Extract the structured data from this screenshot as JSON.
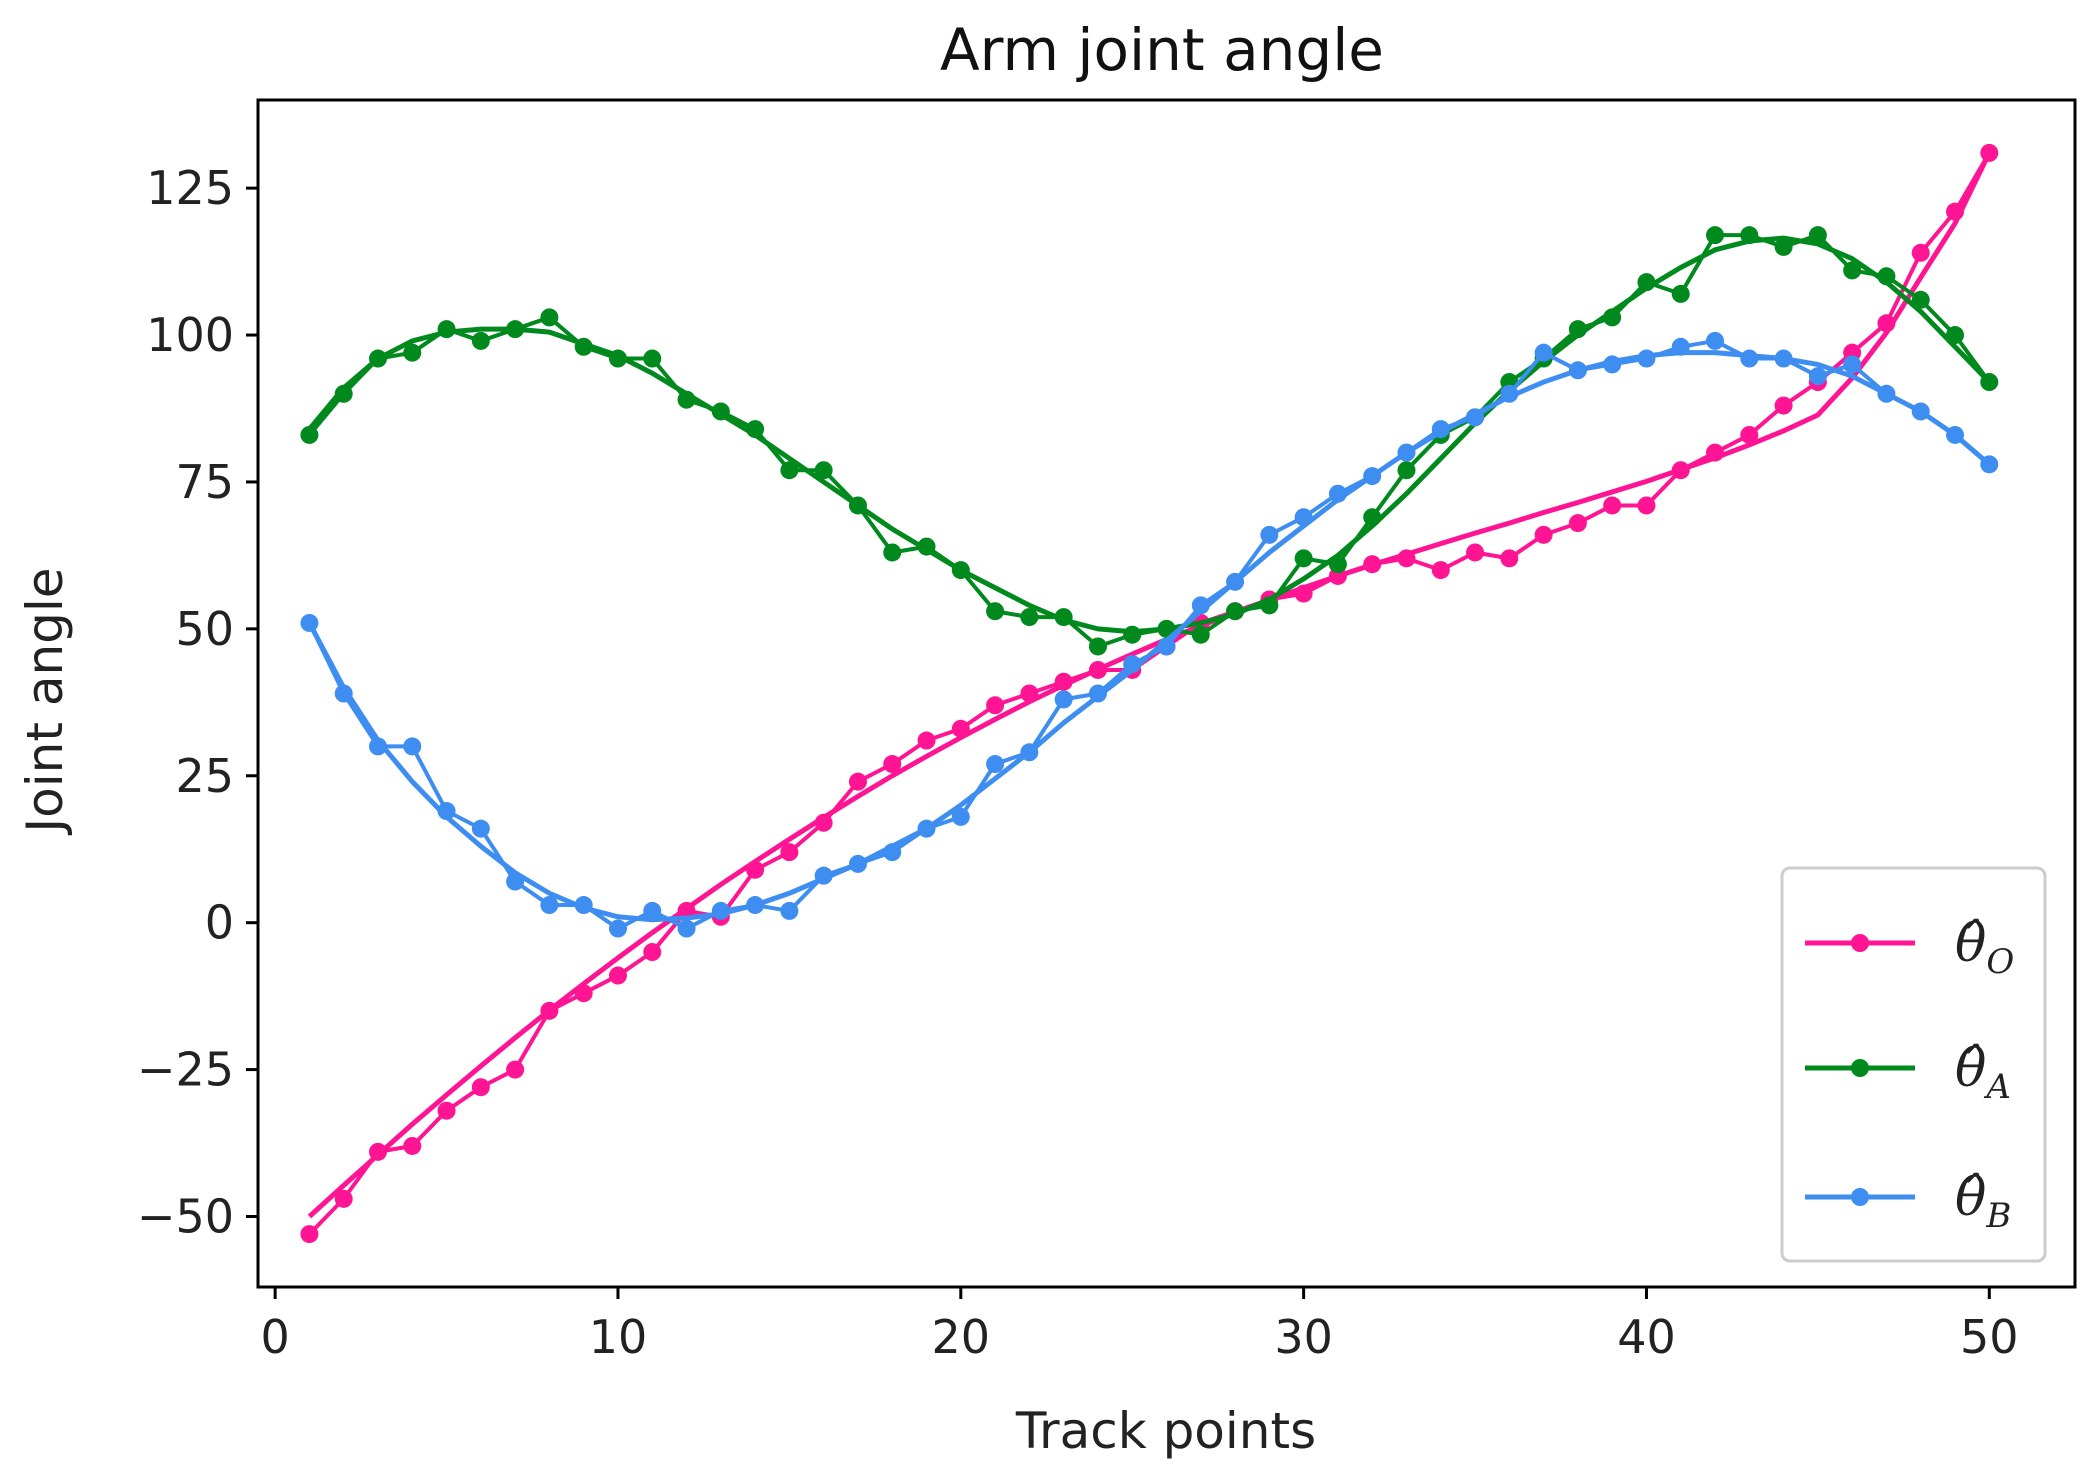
{
  "chart_data": {
    "type": "line",
    "title": "Arm joint angle",
    "xlabel": "Track points",
    "ylabel": "Joint angle",
    "xlim": [
      -0.5,
      52.5
    ],
    "ylim": [
      -62,
      140
    ],
    "xticks": [
      0,
      10,
      20,
      30,
      40,
      50
    ],
    "yticks": [
      -50,
      -25,
      0,
      25,
      50,
      75,
      100,
      125
    ],
    "ytick_labels": [
      "−50",
      "−25",
      "0",
      "25",
      "50",
      "75",
      "100",
      "125"
    ],
    "grid": false,
    "legend_position": "lower-right",
    "x": [
      1,
      2,
      3,
      4,
      5,
      6,
      7,
      8,
      9,
      10,
      11,
      12,
      13,
      14,
      15,
      16,
      17,
      18,
      19,
      20,
      21,
      22,
      23,
      24,
      25,
      26,
      27,
      28,
      29,
      30,
      31,
      32,
      33,
      34,
      35,
      36,
      37,
      38,
      39,
      40,
      41,
      42,
      43,
      44,
      45,
      46,
      47,
      48,
      49,
      50
    ],
    "series": [
      {
        "name": "θ̂",
        "subscript": "O",
        "color": "#ff1493",
        "values": [
          -53,
          -47,
          -39,
          -38,
          -32,
          -28,
          -25,
          -15,
          -12,
          -9,
          -5,
          2,
          1,
          9,
          12,
          17,
          24,
          27,
          31,
          33,
          37,
          39,
          41,
          43,
          43,
          47,
          51,
          53,
          55,
          56,
          59,
          61,
          62,
          60,
          63,
          62,
          66,
          68,
          71,
          71,
          77,
          80,
          83,
          88,
          92,
          97,
          102,
          114,
          121,
          131
        ],
        "fit": [
          -50,
          -44.7,
          -39.5,
          -34.3,
          -29.3,
          -24.4,
          -19.6,
          -14.9,
          -10.4,
          -6.0,
          -1.7,
          2.4,
          6.5,
          10.4,
          14.2,
          17.9,
          21.5,
          25.0,
          28.3,
          31.5,
          34.6,
          37.6,
          40.4,
          43.1,
          45.7,
          48.2,
          50.5,
          52.8,
          54.9,
          57.0,
          59.0,
          60.9,
          62.7,
          64.5,
          66.3,
          68.0,
          69.8,
          71.5,
          73.3,
          75.1,
          77.1,
          79.1,
          81.3,
          83.7,
          86.4,
          92.7,
          100.4,
          109.8,
          119.0,
          131
        ]
      },
      {
        "name": "θ̂",
        "subscript": "A",
        "color": "#008a1e",
        "values": [
          83,
          90,
          96,
          97,
          101,
          99,
          101,
          103,
          98,
          96,
          96,
          89,
          87,
          84,
          77,
          77,
          71,
          63,
          64,
          60,
          53,
          52,
          52,
          47,
          49,
          50,
          49,
          53,
          54,
          62,
          61,
          69,
          77,
          83,
          86,
          92,
          96,
          101,
          103,
          109,
          107,
          117,
          117,
          115,
          117,
          111,
          110,
          106,
          100,
          92
        ],
        "fit": [
          84,
          91,
          96,
          99,
          100.5,
          101,
          101,
          100.5,
          98.5,
          96.5,
          93.5,
          90.0,
          86.5,
          83.0,
          79.0,
          75.0,
          71.0,
          67.0,
          63.5,
          60.0,
          57.0,
          54.0,
          51.5,
          50.0,
          49.5,
          50.0,
          51.0,
          52.5,
          55.0,
          58.5,
          62.5,
          67.5,
          73.0,
          79.0,
          85.0,
          90.5,
          95.5,
          100,
          104,
          108,
          111.5,
          114.5,
          116,
          116.5,
          115.5,
          113,
          109,
          104,
          98,
          92
        ]
      },
      {
        "name": "θ̂",
        "subscript": "B",
        "color": "#3d8ef0",
        "values": [
          51,
          39,
          30,
          30,
          19,
          16,
          7,
          3,
          3,
          -1,
          2,
          -1,
          2,
          3,
          2,
          8,
          10,
          12,
          16,
          18,
          27,
          29,
          38,
          39,
          44,
          47,
          54,
          58,
          66,
          69,
          73,
          76,
          80,
          84,
          86,
          90,
          97,
          94,
          95,
          96,
          98,
          99,
          96,
          96,
          93,
          95,
          90,
          87,
          83,
          78
        ],
        "fit": [
          51,
          40,
          31,
          24,
          18,
          13,
          8.5,
          5,
          2.5,
          1,
          0.5,
          0.8,
          1.5,
          3,
          5,
          7.5,
          10,
          13,
          16,
          20,
          24.5,
          29,
          34,
          38.5,
          43,
          48,
          53,
          58,
          63,
          67.5,
          72,
          76,
          80,
          83.5,
          86.5,
          89.5,
          92,
          94,
          95.5,
          96.5,
          97,
          97,
          96.5,
          96,
          95,
          93,
          90,
          87,
          83,
          78
        ]
      }
    ]
  }
}
